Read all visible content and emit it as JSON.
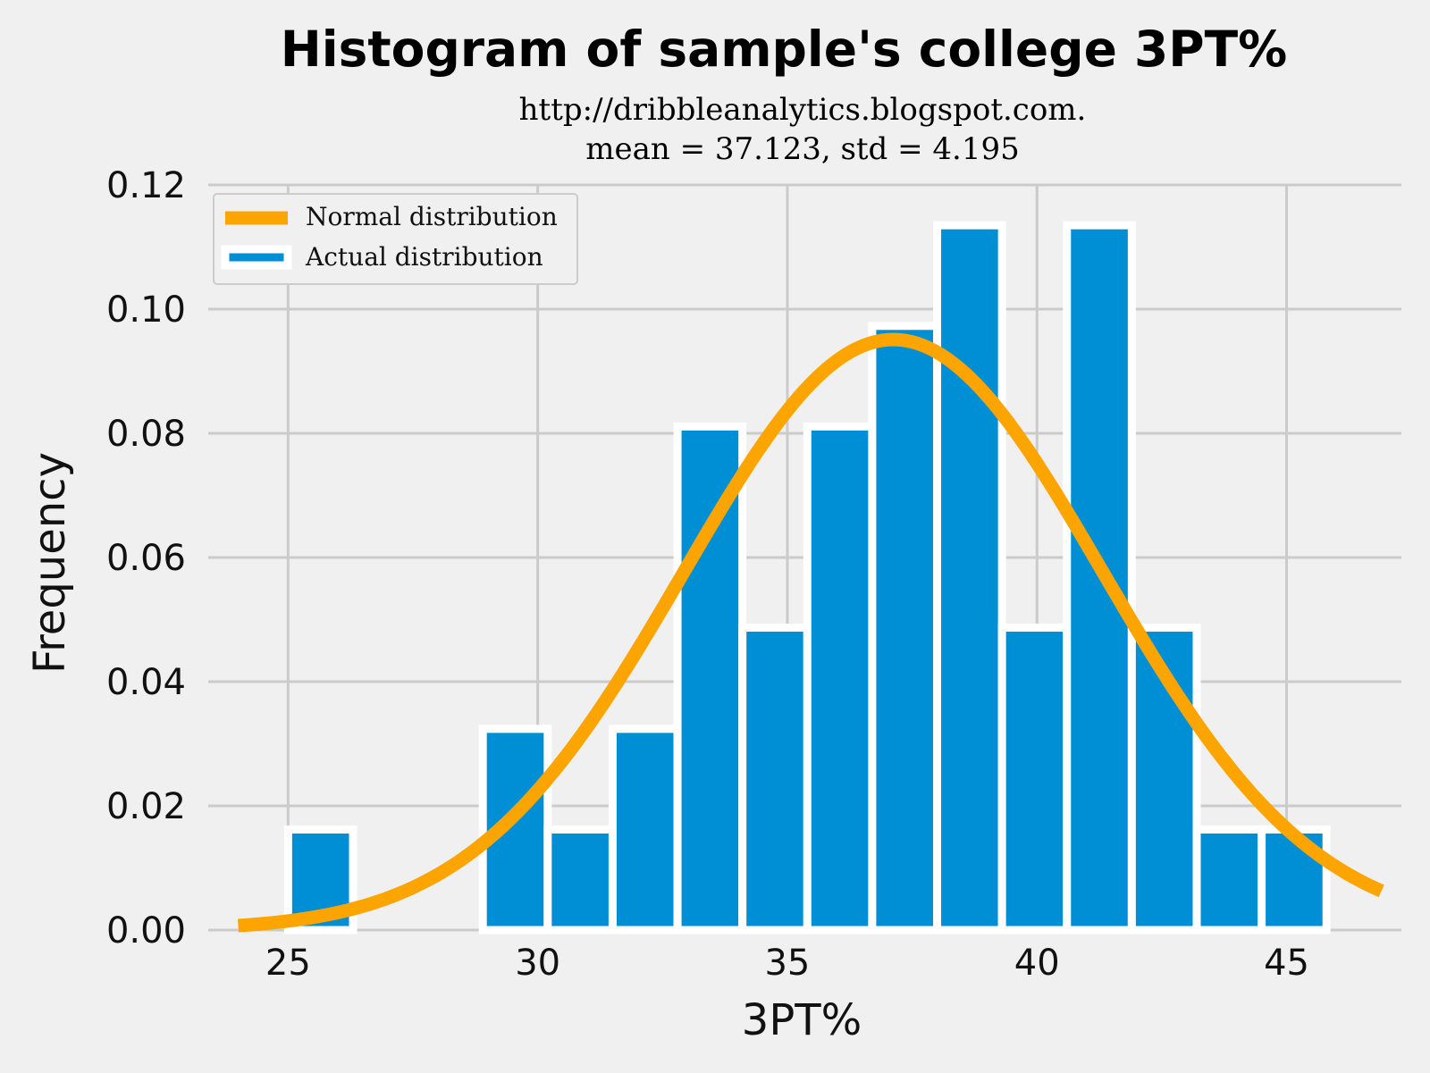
{
  "chart_data": {
    "type": "bar",
    "title": "Histogram of sample's college 3PT%",
    "subtitle_line1": "http://dribbleanalytics.blogspot.com.",
    "subtitle_line2": "mean = 37.123, std = 4.195",
    "xlabel": "3PT%",
    "ylabel": "Frequency",
    "xlim": [
      23.4,
      47.3
    ],
    "ylim": [
      0,
      0.12
    ],
    "xticks": [
      25,
      30,
      35,
      40,
      45
    ],
    "xtick_labels": [
      "25",
      "30",
      "35",
      "40",
      "45"
    ],
    "yticks": [
      0,
      0.02,
      0.04,
      0.06,
      0.08,
      0.1,
      0.12
    ],
    "ytick_labels": [
      "0.00",
      "0.02",
      "0.04",
      "0.06",
      "0.08",
      "0.10",
      "0.12"
    ],
    "grid": true,
    "legend_position": "top-left",
    "bins": [
      {
        "left": 25.0,
        "right": 26.3,
        "value": 0.0162
      },
      {
        "left": 28.9,
        "right": 30.2,
        "value": 0.0324
      },
      {
        "left": 30.2,
        "right": 31.5,
        "value": 0.0162
      },
      {
        "left": 31.5,
        "right": 32.8,
        "value": 0.0324
      },
      {
        "left": 32.8,
        "right": 34.1,
        "value": 0.0811
      },
      {
        "left": 34.1,
        "right": 35.4,
        "value": 0.0487
      },
      {
        "left": 35.4,
        "right": 36.7,
        "value": 0.0811
      },
      {
        "left": 36.7,
        "right": 38.0,
        "value": 0.0973
      },
      {
        "left": 38.0,
        "right": 39.3,
        "value": 0.1135
      },
      {
        "left": 39.3,
        "right": 40.6,
        "value": 0.0487
      },
      {
        "left": 40.6,
        "right": 41.9,
        "value": 0.1135
      },
      {
        "left": 41.9,
        "right": 43.2,
        "value": 0.0487
      },
      {
        "left": 43.2,
        "right": 44.5,
        "value": 0.0162
      },
      {
        "left": 44.5,
        "right": 45.8,
        "value": 0.0162
      }
    ],
    "normal_curve": {
      "mean": 37.123,
      "std": 4.195,
      "x_start": 24.0,
      "x_end": 46.9
    },
    "series": [
      {
        "name": "Normal distribution",
        "color": "#fca400",
        "kind": "line"
      },
      {
        "name": "Actual distribution",
        "color": "#008fd5",
        "kind": "bar"
      }
    ]
  }
}
